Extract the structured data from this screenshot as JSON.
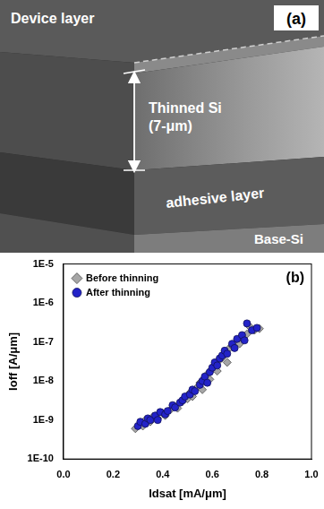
{
  "panel_a": {
    "label": "(a)",
    "device_layer": "Device layer",
    "thinned_si": [
      "Thinned Si",
      "(7-μm)"
    ],
    "adhesive_layer": "adhesive layer",
    "base_si": "Base-Si"
  },
  "chart_data": {
    "type": "scatter",
    "annotations": [
      "(b)"
    ],
    "x_label": "Idsat [mA/μm]",
    "y_label": "Ioff [A/μm]",
    "log": "y",
    "grid": false,
    "legend": "upper left",
    "xlim": [
      0,
      1
    ],
    "xticks": [
      {
        "value": 0,
        "label": "0.0"
      },
      0.2,
      0.4,
      0.6,
      0.8,
      {
        "value": 1,
        "label": "1.0"
      }
    ],
    "ylim": [
      1e-10,
      1e-05
    ],
    "yticks": [
      {
        "value": 1e-10,
        "label": "1E-10"
      },
      {
        "value": 1e-09,
        "label": "1E-9"
      },
      {
        "value": 1e-08,
        "label": "1E-8"
      },
      {
        "value": 1e-07,
        "label": "1E-7"
      },
      {
        "value": 1e-06,
        "label": "1E-6"
      },
      {
        "value": 1e-05,
        "label": "1E-5"
      }
    ],
    "series": [
      {
        "name": "Before thinning",
        "color": "#a6a6a6",
        "marker": "diamond",
        "x": [
          0.29,
          0.31,
          0.32,
          0.33,
          0.35,
          0.36,
          0.38,
          0.4,
          0.41,
          0.43,
          0.45,
          0.46,
          0.48,
          0.5,
          0.51,
          0.52,
          0.54,
          0.55,
          0.56,
          0.57,
          0.58,
          0.59,
          0.6,
          0.61,
          0.62,
          0.63,
          0.64,
          0.65,
          0.66,
          0.67,
          0.68,
          0.7,
          0.71,
          0.72,
          0.74,
          0.75,
          0.77,
          0.79
        ],
        "values": [
          6e-10,
          8e-10,
          7e-10,
          1e-09,
          9e-10,
          1.2e-09,
          1.1e-09,
          1.5e-09,
          1.3e-09,
          1.8e-09,
          2.2e-09,
          2e-09,
          3e-09,
          3.5e-09,
          5e-09,
          4e-09,
          7e-09,
          9e-09,
          6e-09,
          1.2e-08,
          1.5e-08,
          1.1e-08,
          2e-08,
          2.5e-08,
          1.8e-08,
          3.5e-08,
          4e-08,
          5e-08,
          3e-08,
          7e-08,
          8e-08,
          1e-07,
          9e-08,
          1.3e-07,
          1.6e-07,
          2.5e-07,
          2e-07,
          2.2e-07
        ]
      },
      {
        "name": "After thinning",
        "color": "#2323c8",
        "marker": "circle",
        "x": [
          0.3,
          0.31,
          0.33,
          0.34,
          0.35,
          0.37,
          0.38,
          0.39,
          0.41,
          0.42,
          0.44,
          0.45,
          0.47,
          0.48,
          0.49,
          0.51,
          0.52,
          0.53,
          0.55,
          0.56,
          0.57,
          0.58,
          0.59,
          0.6,
          0.61,
          0.62,
          0.63,
          0.64,
          0.65,
          0.66,
          0.68,
          0.69,
          0.7,
          0.72,
          0.73,
          0.74,
          0.76,
          0.78
        ],
        "values": [
          7e-10,
          9e-10,
          8e-10,
          1.1e-09,
          1e-09,
          1.3e-09,
          1e-09,
          1.6e-09,
          1.4e-09,
          1.7e-09,
          2.4e-09,
          2.1e-09,
          2.8e-09,
          3.2e-09,
          4e-09,
          4.5e-09,
          6e-09,
          5.5e-09,
          8e-09,
          1e-08,
          1.3e-08,
          9e-09,
          1.7e-08,
          2.2e-08,
          3e-08,
          2.5e-08,
          3.8e-08,
          4.5e-08,
          6e-08,
          5e-08,
          9e-08,
          7e-08,
          1.2e-07,
          1.5e-07,
          1.1e-07,
          3e-07,
          2e-07,
          2.3e-07
        ]
      }
    ]
  }
}
